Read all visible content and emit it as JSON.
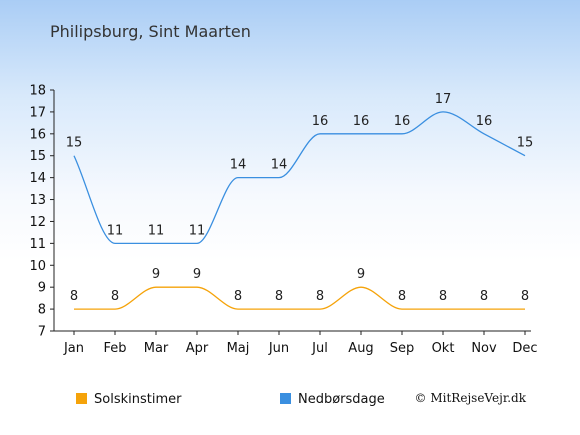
{
  "chart_data": {
    "type": "line",
    "title": "Philipsburg, Sint Maarten",
    "categories": [
      "Jan",
      "Feb",
      "Mar",
      "Apr",
      "Maj",
      "Jun",
      "Jul",
      "Aug",
      "Sep",
      "Okt",
      "Nov",
      "Dec"
    ],
    "series": [
      {
        "name": "Solskinstimer",
        "color": "#f5a30a",
        "values": [
          8,
          8,
          9,
          9,
          8,
          8,
          8,
          9,
          8,
          8,
          8,
          8
        ]
      },
      {
        "name": "Nedbørsdage",
        "color": "#3a8fe0",
        "values": [
          15,
          11,
          11,
          11,
          14,
          14,
          16,
          16,
          16,
          17,
          16,
          15
        ]
      }
    ],
    "y_ticks": [
      7,
      8,
      9,
      10,
      11,
      12,
      13,
      14,
      15,
      16,
      17,
      18
    ],
    "ylim": [
      7,
      18
    ],
    "xlabel": "",
    "ylabel": "",
    "legend_position": "bottom",
    "grid": false
  },
  "copyright": "© MitRejseVejr.dk"
}
